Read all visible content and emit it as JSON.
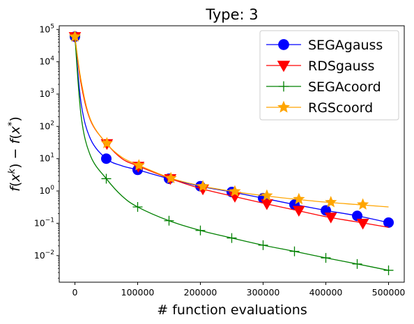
{
  "chart_data": {
    "type": "line",
    "title": "Type: 3",
    "xlabel": "# function evaluations",
    "ylabel": "f(x^k) − f(x^*)",
    "xlim": [
      -25000,
      525000
    ],
    "ylim": [
      0.0015,
      130000
    ],
    "yscale": "log",
    "grid": false,
    "legend_position": "top-right",
    "x_ticks": [
      0,
      100000,
      200000,
      300000,
      400000,
      500000
    ],
    "x_tick_labels": [
      "0",
      "100000",
      "200000",
      "300000",
      "400000",
      "500000"
    ],
    "y_ticks": [
      0.01,
      0.1,
      1,
      10,
      100,
      1000,
      10000,
      100000
    ],
    "y_tick_labels": [
      [
        "10",
        "−2"
      ],
      [
        "10",
        "−1"
      ],
      [
        "10",
        "0"
      ],
      [
        "10",
        "1"
      ],
      [
        "10",
        "2"
      ],
      [
        "10",
        "3"
      ],
      [
        "10",
        "4"
      ],
      [
        "10",
        "5"
      ]
    ],
    "series": [
      {
        "name": "SEGAgauss",
        "color": "#0000ff",
        "marker": "circle",
        "x": [
          0,
          10000,
          25000,
          50000,
          75000,
          100000,
          150000,
          200000,
          250000,
          300000,
          350000,
          400000,
          450000,
          500000
        ],
        "y": [
          60000,
          500,
          40,
          10,
          6,
          4.5,
          2.4,
          1.4,
          0.93,
          0.6,
          0.38,
          0.25,
          0.17,
          0.105
        ],
        "markers_x": [
          0,
          50000,
          100000,
          150000,
          200000,
          250000,
          300000,
          350000,
          400000,
          450000,
          500000
        ],
        "markers_y": [
          60000,
          10,
          4.5,
          2.4,
          1.4,
          0.93,
          0.6,
          0.38,
          0.25,
          0.17,
          0.105
        ]
      },
      {
        "name": "RDSgauss",
        "color": "#ff0000",
        "marker": "triangle-down",
        "x": [
          0,
          10000,
          25000,
          50000,
          75000,
          100000,
          150000,
          200000,
          250000,
          300000,
          350000,
          400000,
          450000,
          500000
        ],
        "y": [
          60000,
          2000,
          150,
          30,
          10,
          6,
          2.5,
          1.2,
          0.7,
          0.42,
          0.26,
          0.16,
          0.11,
          0.075
        ],
        "markers_x": [
          0,
          51000,
          101000,
          152000,
          204000,
          255000,
          306000,
          357000,
          408000,
          459000
        ],
        "markers_y": [
          60000,
          29,
          5.8,
          2.4,
          1.15,
          0.68,
          0.4,
          0.25,
          0.155,
          0.1
        ]
      },
      {
        "name": "SEGAcoord",
        "color": "#008000",
        "marker": "plus",
        "x": [
          0,
          10000,
          25000,
          50000,
          75000,
          100000,
          150000,
          200000,
          250000,
          300000,
          350000,
          400000,
          450000,
          500000
        ],
        "y": [
          60000,
          200,
          12,
          2.4,
          0.7,
          0.32,
          0.12,
          0.06,
          0.035,
          0.021,
          0.0135,
          0.0085,
          0.0055,
          0.0035
        ],
        "markers_x": [
          0,
          50000,
          100000,
          150000,
          200000,
          250000,
          300000,
          350000,
          400000,
          450000,
          500000
        ],
        "markers_y": [
          60000,
          2.4,
          0.32,
          0.12,
          0.06,
          0.035,
          0.021,
          0.0135,
          0.0085,
          0.0055,
          0.0035
        ]
      },
      {
        "name": "RGScoord",
        "color": "#ffa500",
        "marker": "star",
        "x": [
          0,
          10000,
          25000,
          50000,
          75000,
          100000,
          150000,
          200000,
          250000,
          300000,
          350000,
          400000,
          450000,
          500000
        ],
        "y": [
          60000,
          2500,
          160,
          30,
          11,
          6.5,
          2.6,
          1.45,
          0.98,
          0.72,
          0.56,
          0.45,
          0.38,
          0.32
        ],
        "markers_x": [
          0,
          51000,
          102000,
          153000,
          204000,
          255000,
          306000,
          357000,
          408000,
          459000
        ],
        "markers_y": [
          60000,
          30,
          6.2,
          2.5,
          1.4,
          0.97,
          0.72,
          0.56,
          0.45,
          0.38
        ]
      }
    ]
  }
}
